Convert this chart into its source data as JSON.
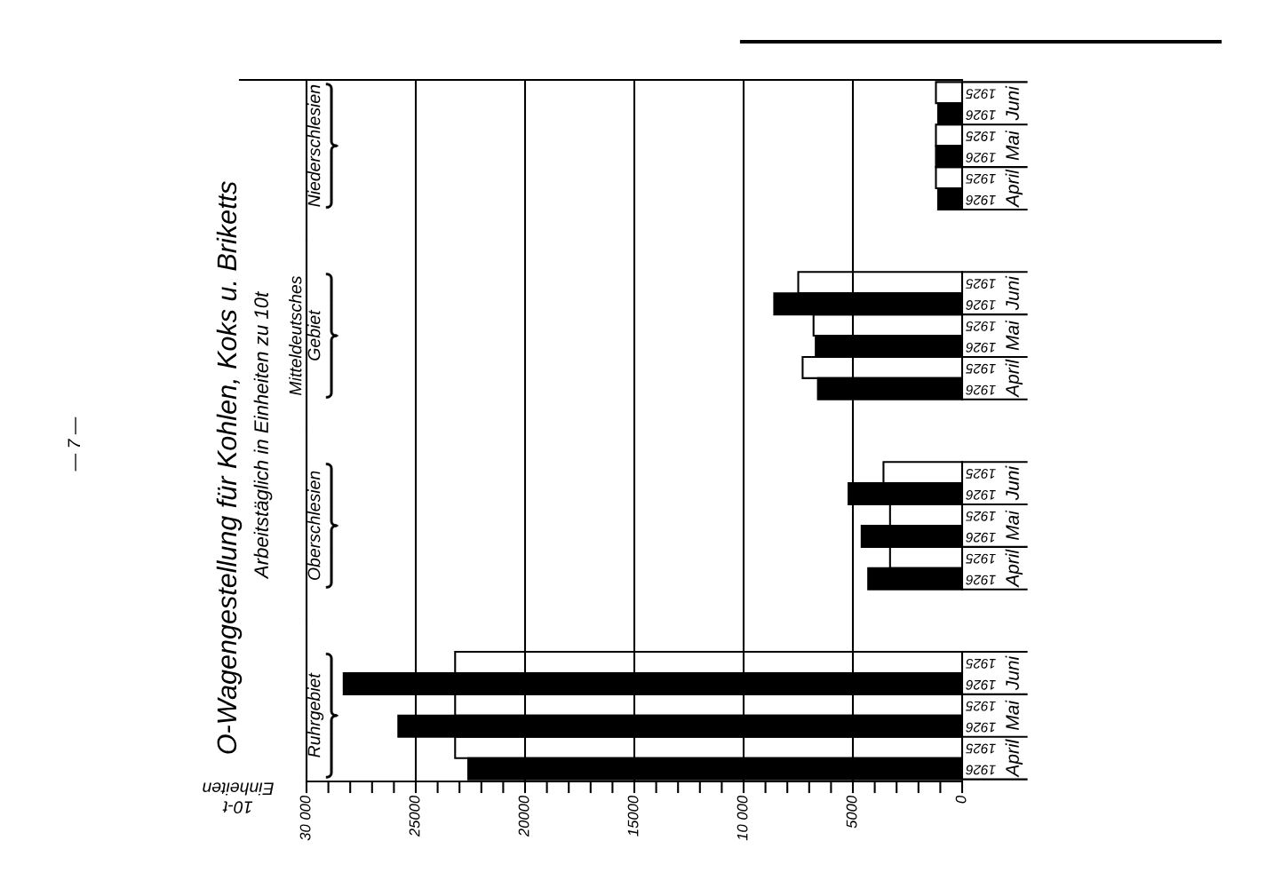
{
  "chart_data": [
    {
      "type": "other",
      "title": "O-Wagengestellung für Kohlen, Koks u. Briketts",
      "subtitle": "Arbeitstäglich in Einheiten zu 10t",
      "annotations": [
        "— 7 —"
      ]
    },
    {
      "type": "bar",
      "orientation": "horizontal",
      "title": "Niederschlesien",
      "categories": [
        "Juni",
        "Mai",
        "April"
      ],
      "series": [
        {
          "name": "1925",
          "color": "#ffffff",
          "values": [
            1200,
            1200,
            1200
          ]
        },
        {
          "name": "1926",
          "color": "#000000",
          "values": [
            1100,
            1200,
            1100
          ]
        }
      ],
      "xlim": [
        30000,
        0
      ],
      "xticks": [
        0,
        5000,
        10000,
        15000,
        20000,
        25000,
        30000
      ],
      "grid": "x",
      "tick_labels": "y"
    },
    {
      "type": "bar",
      "orientation": "horizontal",
      "title": "Mitteldeutsches\nGebiet",
      "categories": [
        "Juni",
        "Mai",
        "April"
      ],
      "series": [
        {
          "name": "1925",
          "color": "#ffffff",
          "values": [
            7500,
            6800,
            7300
          ]
        },
        {
          "name": "1926",
          "color": "#000000",
          "values": [
            8600,
            6700,
            6600
          ]
        }
      ],
      "xlim": [
        30000,
        0
      ],
      "xticks": [
        0,
        5000,
        10000,
        15000,
        20000,
        25000,
        30000
      ],
      "grid": "x",
      "tick_labels": "y"
    },
    {
      "type": "bar",
      "orientation": "horizontal",
      "title": "Oberschlesien",
      "categories": [
        "Juni",
        "Mai",
        "April"
      ],
      "series": [
        {
          "name": "1925",
          "color": "#ffffff",
          "values": [
            3600,
            3300,
            3300
          ]
        },
        {
          "name": "1926",
          "color": "#000000",
          "values": [
            5200,
            4600,
            4300
          ]
        }
      ],
      "xlim": [
        30000,
        0
      ],
      "xticks": [
        0,
        5000,
        10000,
        15000,
        20000,
        25000,
        30000
      ],
      "grid": "x",
      "tick_labels": "y"
    },
    {
      "type": "bar",
      "orientation": "horizontal",
      "title": "Ruhrgebiet",
      "xlabel": "10-t\nEinheiten",
      "categories": [
        "Juni",
        "Mai",
        "April"
      ],
      "series": [
        {
          "name": "1925",
          "color": "#ffffff",
          "values": [
            23200,
            23200,
            23200
          ]
        },
        {
          "name": "1926",
          "color": "#000000",
          "values": [
            28300,
            25800,
            22600
          ]
        }
      ],
      "xlim": [
        30000,
        0
      ],
      "xticks": [
        0,
        {
          "value": 1000,
          "label": null
        },
        {
          "value": 2000,
          "label": null
        },
        {
          "value": 3000,
          "label": null
        },
        {
          "value": 4000,
          "label": null
        },
        5000,
        {
          "value": 6000,
          "label": null
        },
        {
          "value": 7000,
          "label": null
        },
        {
          "value": 8000,
          "label": null
        },
        {
          "value": 9000,
          "label": null
        },
        {
          "value": 10000,
          "label": "10 000"
        },
        {
          "value": 11000,
          "label": null
        },
        {
          "value": 12000,
          "label": null
        },
        {
          "value": 13000,
          "label": null
        },
        {
          "value": 14000,
          "label": null
        },
        15000,
        {
          "value": 16000,
          "label": null
        },
        {
          "value": 17000,
          "label": null
        },
        {
          "value": 18000,
          "label": null
        },
        {
          "value": 19000,
          "label": null
        },
        20000,
        {
          "value": 21000,
          "label": null
        },
        {
          "value": 22000,
          "label": null
        },
        {
          "value": 23000,
          "label": null
        },
        {
          "value": 24000,
          "label": null
        },
        25000,
        {
          "value": 26000,
          "label": null
        },
        {
          "value": 27000,
          "label": null
        },
        {
          "value": 28000,
          "label": null
        },
        {
          "value": 29000,
          "label": null
        },
        {
          "value": 30000,
          "label": "30 000"
        }
      ],
      "grid": "x"
    }
  ]
}
